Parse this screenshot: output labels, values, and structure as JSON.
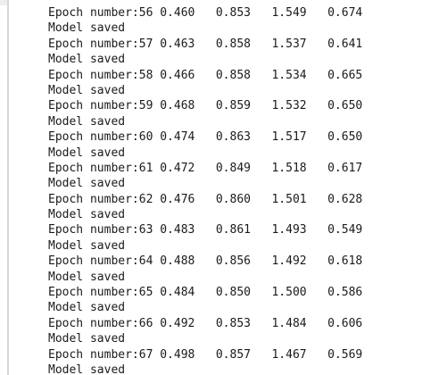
{
  "output": {
    "rows": [
      {
        "epoch": "56",
        "v1": "0.460",
        "v2": "0.853",
        "v3": "1.549",
        "v4": "0.674"
      },
      {
        "epoch": "57",
        "v1": "0.463",
        "v2": "0.858",
        "v3": "1.537",
        "v4": "0.641"
      },
      {
        "epoch": "58",
        "v1": "0.466",
        "v2": "0.858",
        "v3": "1.534",
        "v4": "0.665"
      },
      {
        "epoch": "59",
        "v1": "0.468",
        "v2": "0.859",
        "v3": "1.532",
        "v4": "0.650"
      },
      {
        "epoch": "60",
        "v1": "0.474",
        "v2": "0.863",
        "v3": "1.517",
        "v4": "0.650"
      },
      {
        "epoch": "61",
        "v1": "0.472",
        "v2": "0.849",
        "v3": "1.518",
        "v4": "0.617"
      },
      {
        "epoch": "62",
        "v1": "0.476",
        "v2": "0.860",
        "v3": "1.501",
        "v4": "0.628"
      },
      {
        "epoch": "63",
        "v1": "0.483",
        "v2": "0.861",
        "v3": "1.493",
        "v4": "0.549"
      },
      {
        "epoch": "64",
        "v1": "0.488",
        "v2": "0.856",
        "v3": "1.492",
        "v4": "0.618"
      },
      {
        "epoch": "65",
        "v1": "0.484",
        "v2": "0.850",
        "v3": "1.500",
        "v4": "0.586"
      },
      {
        "epoch": "66",
        "v1": "0.492",
        "v2": "0.853",
        "v3": "1.484",
        "v4": "0.606"
      },
      {
        "epoch": "67",
        "v1": "0.498",
        "v2": "0.857",
        "v3": "1.467",
        "v4": "0.569"
      }
    ],
    "epoch_prefix": "Epoch number:",
    "saved_text": "Model saved"
  }
}
